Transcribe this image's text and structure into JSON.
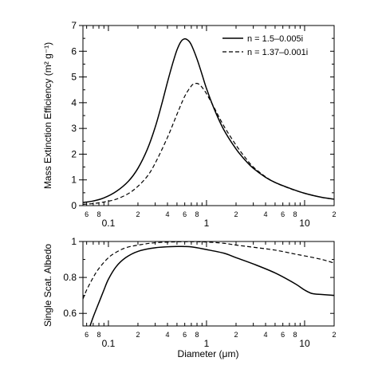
{
  "chart_data": [
    {
      "type": "line",
      "xscale": "log",
      "xlim": [
        0.055,
        20
      ],
      "ylim": [
        0,
        7
      ],
      "yticks": [
        0,
        1,
        2,
        3,
        4,
        5,
        6,
        7
      ],
      "ylabel": "Mass Extinction Efficiency (m² g⁻¹)",
      "xlabel": "",
      "x_major_tick_labels": [
        "0.1",
        "1",
        "10"
      ],
      "x_minor_tick_labels": [
        {
          "x": 0.06,
          "label": "6"
        },
        {
          "x": 0.08,
          "label": "8"
        },
        {
          "x": 0.2,
          "label": "2"
        },
        {
          "x": 0.4,
          "label": "4"
        },
        {
          "x": 0.6,
          "label": "6"
        },
        {
          "x": 0.8,
          "label": "8"
        },
        {
          "x": 2,
          "label": "2"
        },
        {
          "x": 4,
          "label": "4"
        },
        {
          "x": 6,
          "label": "6"
        },
        {
          "x": 8,
          "label": "8"
        },
        {
          "x": 20,
          "label": "2"
        }
      ],
      "legend_position": "top-right",
      "series": [
        {
          "name": "n = 1.5–0.005i",
          "style": "solid",
          "x": [
            0.055,
            0.07,
            0.09,
            0.12,
            0.16,
            0.2,
            0.25,
            0.3,
            0.35,
            0.4,
            0.45,
            0.5,
            0.55,
            0.6,
            0.65,
            0.7,
            0.8,
            0.9,
            1.0,
            1.2,
            1.5,
            2.0,
            2.5,
            3.0,
            4.0,
            5.0,
            7.0,
            10.0,
            15.0,
            20.0
          ],
          "y": [
            0.12,
            0.18,
            0.3,
            0.55,
            0.95,
            1.45,
            2.2,
            3.05,
            3.95,
            4.8,
            5.5,
            6.05,
            6.38,
            6.48,
            6.42,
            6.25,
            5.7,
            5.1,
            4.55,
            3.75,
            2.95,
            2.2,
            1.75,
            1.45,
            1.1,
            0.9,
            0.68,
            0.48,
            0.32,
            0.25
          ]
        },
        {
          "name": "n = 1.37–0.001i",
          "style": "dashed",
          "x": [
            0.055,
            0.07,
            0.09,
            0.12,
            0.16,
            0.2,
            0.25,
            0.3,
            0.4,
            0.5,
            0.6,
            0.7,
            0.75,
            0.8,
            0.85,
            0.9,
            1.0,
            1.2,
            1.5,
            2.0,
            2.5,
            3.0,
            4.0,
            5.0,
            7.0,
            10.0,
            15.0,
            20.0
          ],
          "y": [
            0.05,
            0.08,
            0.14,
            0.25,
            0.47,
            0.75,
            1.15,
            1.65,
            2.65,
            3.55,
            4.25,
            4.65,
            4.73,
            4.75,
            4.7,
            4.6,
            4.35,
            3.8,
            3.1,
            2.35,
            1.85,
            1.5,
            1.12,
            0.9,
            0.67,
            0.48,
            0.32,
            0.25
          ]
        }
      ]
    },
    {
      "type": "line",
      "xscale": "log",
      "xlim": [
        0.055,
        20
      ],
      "ylim": [
        0.53,
        1.0
      ],
      "yticks": [
        0.6,
        0.8,
        1
      ],
      "ytick_labels": [
        "0.6",
        "0.8",
        "1"
      ],
      "ylabel": "Single Scat. Albedo",
      "xlabel": "Diameter (μm)",
      "x_major_tick_labels": [
        "0.1",
        "1",
        "10"
      ],
      "x_minor_tick_labels": [
        {
          "x": 0.06,
          "label": "6"
        },
        {
          "x": 0.08,
          "label": "8"
        },
        {
          "x": 0.2,
          "label": "2"
        },
        {
          "x": 0.4,
          "label": "4"
        },
        {
          "x": 0.6,
          "label": "6"
        },
        {
          "x": 0.8,
          "label": "8"
        },
        {
          "x": 2,
          "label": "2"
        },
        {
          "x": 4,
          "label": "4"
        },
        {
          "x": 6,
          "label": "6"
        },
        {
          "x": 8,
          "label": "8"
        },
        {
          "x": 20,
          "label": "2"
        }
      ],
      "series": [
        {
          "name": "n = 1.5–0.005i",
          "style": "solid",
          "x": [
            0.065,
            0.07,
            0.08,
            0.09,
            0.1,
            0.12,
            0.15,
            0.2,
            0.3,
            0.5,
            0.7,
            1.0,
            1.5,
            2.0,
            3.0,
            5.0,
            8.0,
            10.0,
            12.0,
            15.0,
            20.0
          ],
          "y": [
            0.53,
            0.58,
            0.66,
            0.73,
            0.79,
            0.86,
            0.91,
            0.945,
            0.965,
            0.972,
            0.97,
            0.955,
            0.935,
            0.91,
            0.875,
            0.825,
            0.765,
            0.73,
            0.71,
            0.705,
            0.7
          ]
        },
        {
          "name": "n = 1.37–0.001i",
          "style": "dashed",
          "x": [
            0.055,
            0.06,
            0.07,
            0.08,
            0.1,
            0.12,
            0.15,
            0.2,
            0.3,
            0.5,
            0.7,
            1.0,
            1.5,
            2.0,
            3.0,
            5.0,
            8.0,
            10.0,
            15.0,
            20.0
          ],
          "y": [
            0.68,
            0.73,
            0.8,
            0.85,
            0.91,
            0.94,
            0.965,
            0.98,
            0.993,
            0.998,
            0.999,
            0.997,
            0.99,
            0.98,
            0.968,
            0.952,
            0.93,
            0.92,
            0.9,
            0.88
          ]
        }
      ]
    }
  ]
}
